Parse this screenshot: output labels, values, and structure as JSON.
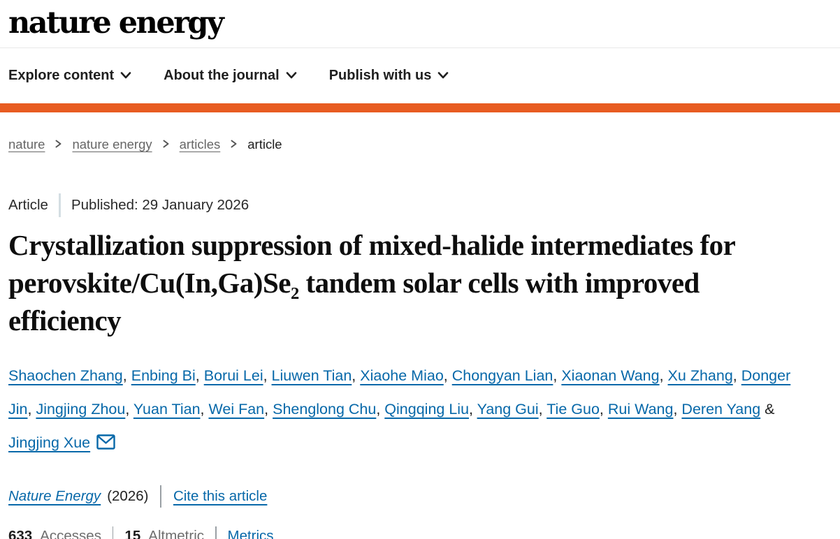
{
  "colors": {
    "accent_orange": "#e85c21",
    "link_blue": "#0768a9"
  },
  "header": {
    "logo": "nature energy",
    "nav": [
      {
        "label": "Explore content"
      },
      {
        "label": "About the journal"
      },
      {
        "label": "Publish with us"
      }
    ]
  },
  "breadcrumb": {
    "links": [
      "nature",
      "nature energy",
      "articles"
    ],
    "current": "article"
  },
  "article": {
    "type_label": "Article",
    "published_label": "Published: 29 January 2026",
    "title": {
      "part1": "Crystallization suppression of mixed-halide intermediates for perovskite/Cu(In,Ga)Se",
      "subscript": "2",
      "part2": " tandem solar cells with improved efficiency"
    },
    "authors": [
      "Shaochen Zhang",
      "Enbing Bi",
      "Borui Lei",
      "Liuwen Tian",
      "Xiaohe Miao",
      "Chongyan Lian",
      "Xiaonan Wang",
      "Xu Zhang",
      "Donger Jin",
      "Jingjing Zhou",
      "Yuan Tian",
      "Wei Fan",
      "Shenglong Chu",
      "Qingqing Liu",
      "Yang Gui",
      "Tie Guo",
      "Rui Wang",
      "Deren Yang",
      "Jingjing Xue"
    ],
    "journal": "Nature Energy",
    "year": "(2026)",
    "cite_link": "Cite this article",
    "metrics": {
      "accesses_count": "633",
      "accesses_label": "Accesses",
      "altmetric_count": "15",
      "altmetric_label": "Altmetric",
      "metrics_link": "Metrics"
    }
  }
}
